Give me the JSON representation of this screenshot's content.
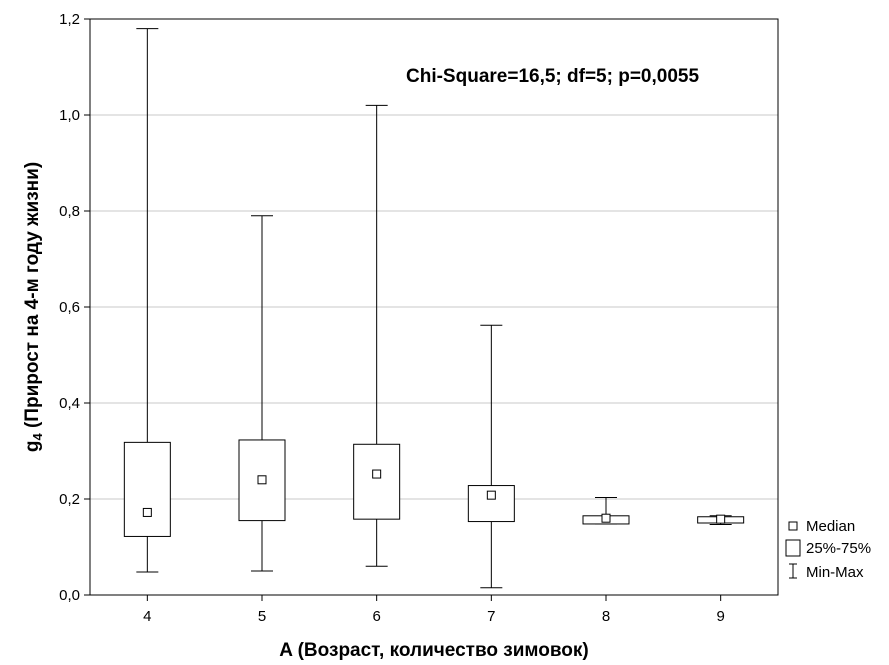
{
  "chart_data": {
    "type": "boxplot",
    "xlabel": "A (Возраст, количество зимовок)",
    "ylabel_main": "g",
    "ylabel_sub": "4",
    "ylabel_rest": " (Прирост на 4-м году жизни)",
    "ylim": [
      0,
      1.2
    ],
    "yticks": [
      "0,0",
      "0,2",
      "0,4",
      "0,6",
      "0,8",
      "1,0",
      "1,2"
    ],
    "ytick_values": [
      0,
      0.2,
      0.4,
      0.6,
      0.8,
      1.0,
      1.2
    ],
    "grid": "horizontal",
    "categories": [
      "4",
      "5",
      "6",
      "7",
      "8",
      "9"
    ],
    "boxes": [
      {
        "min": 0.048,
        "q1": 0.122,
        "median": 0.172,
        "q3": 0.318,
        "max": 1.18
      },
      {
        "min": 0.05,
        "q1": 0.155,
        "median": 0.24,
        "q3": 0.323,
        "max": 0.79
      },
      {
        "min": 0.06,
        "q1": 0.158,
        "median": 0.252,
        "q3": 0.314,
        "max": 1.02
      },
      {
        "min": 0.015,
        "q1": 0.153,
        "median": 0.208,
        "q3": 0.228,
        "max": 0.562
      },
      {
        "min": 0.148,
        "q1": 0.148,
        "median": 0.16,
        "q3": 0.165,
        "max": 0.203
      },
      {
        "min": 0.147,
        "q1": 0.15,
        "median": 0.158,
        "q3": 0.163,
        "max": 0.165
      }
    ],
    "annotation": "Chi-Square=16,5; df=5; p=0,0055",
    "legend": [
      "Median",
      "25%-75%",
      "Min-Max"
    ],
    "legend_position": "right-bottom"
  }
}
